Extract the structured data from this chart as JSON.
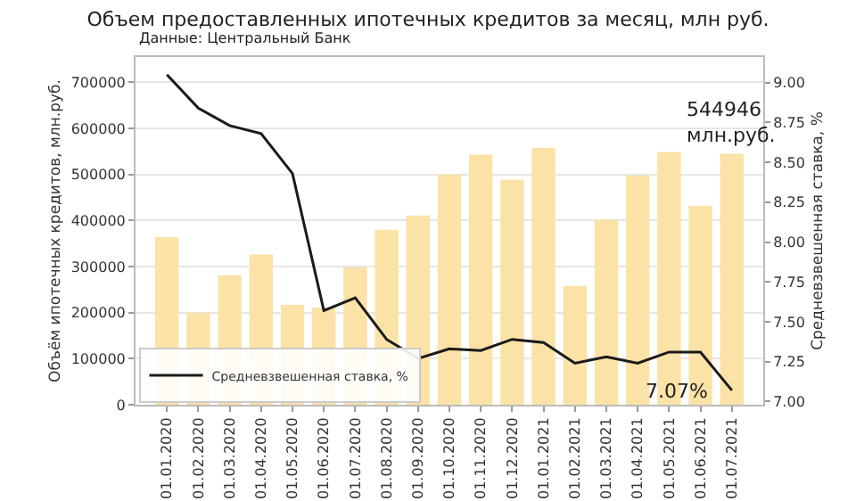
{
  "chart_data": {
    "type": "bar",
    "title": "Объем предоставленных ипотечных кредитов за месяц, млн руб.",
    "subtitle": "Данные: Центральный Банк",
    "ylabel": "Объём ипотечных кредитов, млн.руб.",
    "y2label": "Средневзвешенная ставка, %",
    "categories": [
      "01.01.2020",
      "01.02.2020",
      "01.03.2020",
      "01.04.2020",
      "01.05.2020",
      "01.06.2020",
      "01.07.2020",
      "01.08.2020",
      "01.09.2020",
      "01.10.2020",
      "01.11.2020",
      "01.12.2020",
      "01.01.2021",
      "01.02.2021",
      "01.03.2021",
      "01.04.2021",
      "01.05.2021",
      "01.06.2021",
      "01.07.2021"
    ],
    "series": [
      {
        "color": "#fbe2a6",
        "values": [
          364000,
          200000,
          281000,
          326000,
          217000,
          211000,
          298000,
          380000,
          411000,
          500000,
          543000,
          489000,
          558000,
          258000,
          402000,
          498000,
          549000,
          432000,
          544946
        ],
        "value_labels": [
          null,
          null,
          null,
          null,
          null,
          null,
          null,
          null,
          null,
          null,
          null,
          null,
          null,
          null,
          null,
          null,
          null,
          null,
          "544946\nмлн.руб."
        ]
      },
      {
        "type": "line",
        "name": "Средневзвешенная ставка, %",
        "color": "#1a1a1a",
        "axis": "y2",
        "values": [
          9.05,
          8.84,
          8.73,
          8.68,
          8.43,
          7.57,
          7.65,
          7.39,
          7.27,
          7.33,
          7.32,
          7.39,
          7.37,
          7.24,
          7.28,
          7.24,
          7.31,
          7.31,
          7.07
        ],
        "value_labels": [
          null,
          null,
          null,
          null,
          null,
          null,
          null,
          null,
          null,
          null,
          null,
          null,
          null,
          null,
          null,
          null,
          null,
          null,
          "7.07%"
        ]
      }
    ],
    "ylim": [
      0,
      755000
    ],
    "yticks": [
      0,
      100000,
      200000,
      300000,
      400000,
      500000,
      600000,
      700000
    ],
    "y2lim": [
      6.98,
      9.16
    ],
    "y2ticks": [
      {
        "value": 7,
        "label": "7.00"
      },
      {
        "value": 7.25,
        "label": "7.25"
      },
      {
        "value": 7.5,
        "label": "7.50"
      },
      {
        "value": 7.75,
        "label": "7.75"
      },
      {
        "value": 8,
        "label": "8.00"
      },
      {
        "value": 8.25,
        "label": "8.25"
      },
      {
        "value": 8.5,
        "label": "8.50"
      },
      {
        "value": 8.75,
        "label": "8.75"
      },
      {
        "value": 9,
        "label": "9.00"
      }
    ],
    "grid": "y",
    "legend": "bottom",
    "marker": "none",
    "line_style": "solid"
  }
}
